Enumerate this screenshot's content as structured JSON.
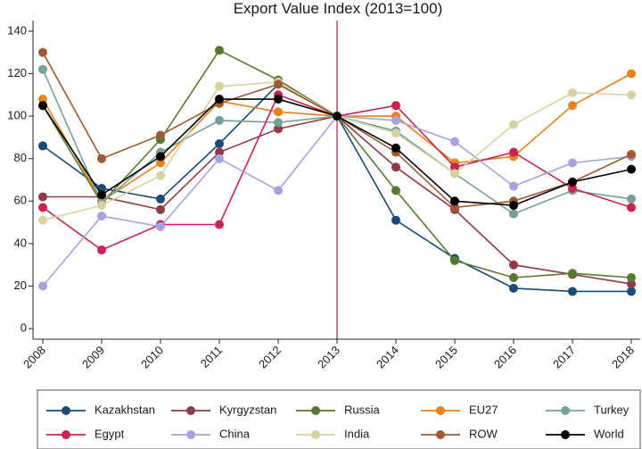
{
  "chart_data": {
    "type": "line",
    "title": "Export Value Index (2013=100)",
    "xlabel": "",
    "ylabel": "",
    "x": [
      "2008",
      "2009",
      "2010",
      "2011",
      "2012",
      "2013",
      "2014",
      "2015",
      "2016",
      "2017",
      "2018"
    ],
    "ylim": [
      -5,
      145
    ],
    "yticks": [
      0,
      20,
      40,
      60,
      80,
      100,
      120,
      140
    ],
    "reference_line_x": "2013",
    "reference_line_color": "#b03050",
    "grid": false,
    "legend_position": "bottom",
    "series": [
      {
        "name": "Kazakhstan",
        "color": "#1a4a78",
        "values": [
          86,
          66,
          61,
          87,
          115,
          100,
          51,
          33,
          19,
          17.5,
          17.5
        ]
      },
      {
        "name": "Kyrgyzstan",
        "color": "#903a45",
        "values": [
          62,
          62,
          56,
          83,
          94,
          100,
          76,
          56,
          30,
          25.5,
          21
        ]
      },
      {
        "name": "Russia",
        "color": "#557a30",
        "values": [
          105,
          59,
          89,
          131,
          117,
          100,
          65,
          32,
          24,
          26,
          24
        ]
      },
      {
        "name": "EU27",
        "color": "#e8821e",
        "values": [
          108,
          60,
          78,
          107,
          102,
          100,
          100,
          78,
          81,
          105,
          120
        ]
      },
      {
        "name": "Turkey",
        "color": "#74a09a",
        "values": [
          122,
          59,
          83,
          98,
          97,
          100,
          93,
          73,
          54,
          65,
          61
        ]
      },
      {
        "name": "Egypt",
        "color": "#c8244f",
        "values": [
          57,
          37,
          49,
          49,
          110,
          100,
          105,
          76,
          83,
          66,
          57
        ]
      },
      {
        "name": "China",
        "color": "#a6a2e0",
        "values": [
          20,
          53,
          48,
          80,
          65,
          100,
          98,
          88,
          67,
          78,
          81
        ]
      },
      {
        "name": "India",
        "color": "#d8d2a0",
        "values": [
          51,
          58,
          72,
          114,
          116,
          100,
          92,
          73,
          96,
          111,
          110
        ]
      },
      {
        "name": "ROW",
        "color": "#9e5a32",
        "values": [
          130,
          80,
          91,
          106,
          115,
          100,
          83,
          57,
          60,
          69,
          82
        ]
      },
      {
        "name": "World",
        "color": "#000000",
        "values": [
          105,
          63,
          81,
          108,
          108,
          100,
          85,
          60,
          58,
          69,
          75
        ]
      }
    ]
  }
}
